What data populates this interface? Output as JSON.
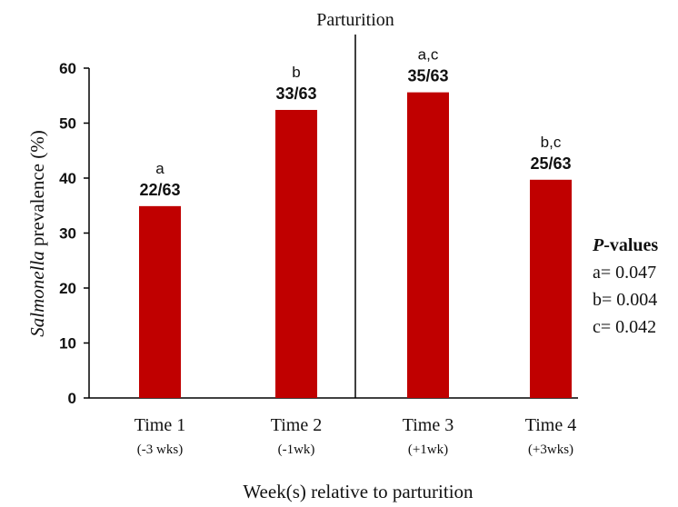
{
  "chart_data": {
    "type": "bar",
    "categories": [
      "Time 1",
      "Time 2",
      "Time 3",
      "Time 4"
    ],
    "category_sublabels": [
      "(-3 wks)",
      "(-1wk)",
      "(+1wk)",
      "(+3wks)"
    ],
    "values": [
      34.9,
      52.4,
      55.6,
      39.7
    ],
    "fractions": [
      "22/63",
      "33/63",
      "35/63",
      "25/63"
    ],
    "letters": [
      "a",
      "b",
      "a,c",
      "b,c"
    ],
    "bar_color": "#c00000",
    "xlabel": "Week(s) relative to parturition",
    "ylabel_italic": "Salmonella",
    "ylabel_rest": " prevalence (%)",
    "ylim": [
      0,
      60
    ],
    "yticks": [
      "0",
      "10",
      "20",
      "30",
      "40",
      "50",
      "60"
    ],
    "marker_label": "Parturition",
    "grid": false,
    "legend": {
      "title_italic": "P",
      "title_rest": "-values",
      "entries": [
        "a= 0.047",
        "b= 0.004",
        "c= 0.042"
      ]
    }
  }
}
